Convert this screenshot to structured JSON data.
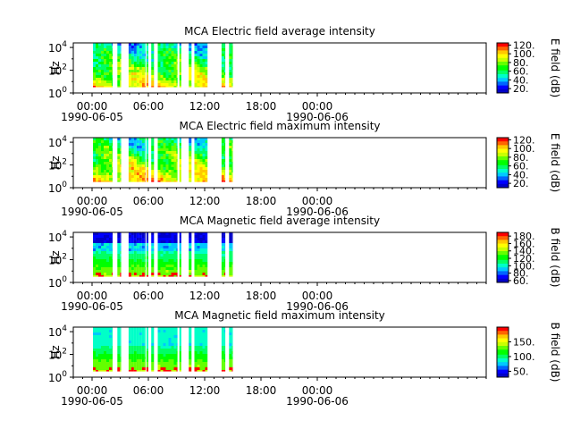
{
  "figure": {
    "background": "#ffffff"
  },
  "colormap": [
    "#0000c8",
    "#0000ff",
    "#0064ff",
    "#00c8ff",
    "#00ffc8",
    "#00ff64",
    "#00ff00",
    "#64ff00",
    "#c8ff00",
    "#ffff00",
    "#ffc800",
    "#ff6400",
    "#ff0000"
  ],
  "chart_data": [
    {
      "type": "heatmap",
      "title": "MCA  Electric field average intensity",
      "ylabel": "Hz",
      "colorbar_label": "E field (dB)",
      "colorbar_ticks": [
        "20.",
        "40.",
        "60.",
        "80.",
        "100.",
        "120."
      ],
      "colorbar_range": [
        10,
        125
      ],
      "ytick_labels": [
        {
          "base": "10",
          "exp": "0"
        },
        {
          "base": "10",
          "exp": "2"
        },
        {
          "base": "10",
          "exp": "4"
        }
      ],
      "ylim_log10": [
        0,
        4.4
      ],
      "xlim_hours": [
        -2,
        42
      ],
      "xtick_labels": [
        {
          "time": "00:00",
          "date": "1990-06-05"
        },
        {
          "time": "06:00",
          "date": ""
        },
        {
          "time": "12:00",
          "date": ""
        },
        {
          "time": "18:00",
          "date": ""
        },
        {
          "time": "00:00",
          "date": "1990-06-06"
        }
      ],
      "data_segments_hours": [
        [
          0.1,
          2.2
        ],
        [
          2.7,
          3.1
        ],
        [
          3.9,
          5.7
        ],
        [
          5.8,
          6.0
        ],
        [
          6.3,
          6.6
        ],
        [
          7.0,
          9.1
        ],
        [
          9.3,
          9.5
        ],
        [
          10.3,
          10.6
        ],
        [
          10.9,
          12.3
        ],
        [
          13.8,
          14.2
        ],
        [
          14.6,
          15.0
        ]
      ],
      "data_freq_range_log10": [
        0.5,
        4.4
      ]
    },
    {
      "type": "heatmap",
      "title": "MCA  Electric field maximum intensity",
      "ylabel": "Hz",
      "colorbar_label": "E field (dB)",
      "colorbar_ticks": [
        "20.",
        "40.",
        "60.",
        "80.",
        "100.",
        "120."
      ],
      "colorbar_range": [
        10,
        125
      ],
      "ytick_labels": [
        {
          "base": "10",
          "exp": "0"
        },
        {
          "base": "10",
          "exp": "2"
        },
        {
          "base": "10",
          "exp": "4"
        }
      ],
      "ylim_log10": [
        0,
        4.4
      ],
      "xlim_hours": [
        -2,
        42
      ],
      "xtick_labels": [
        {
          "time": "00:00",
          "date": "1990-06-05"
        },
        {
          "time": "06:00",
          "date": ""
        },
        {
          "time": "12:00",
          "date": ""
        },
        {
          "time": "18:00",
          "date": ""
        },
        {
          "time": "00:00",
          "date": "1990-06-06"
        }
      ],
      "data_segments_hours": [
        [
          0.1,
          2.2
        ],
        [
          2.7,
          3.1
        ],
        [
          3.9,
          5.7
        ],
        [
          5.8,
          6.0
        ],
        [
          6.3,
          6.6
        ],
        [
          7.0,
          9.1
        ],
        [
          9.3,
          9.5
        ],
        [
          10.3,
          10.6
        ],
        [
          10.9,
          12.3
        ],
        [
          13.8,
          14.2
        ],
        [
          14.6,
          15.0
        ]
      ],
      "data_freq_range_log10": [
        0.5,
        4.4
      ]
    },
    {
      "type": "heatmap",
      "title": "MCA  Magnetic field average intensity",
      "ylabel": "Hz",
      "colorbar_label": "B field (dB)",
      "colorbar_ticks": [
        "60.",
        "80.",
        "100.",
        "120.",
        "140.",
        "160.",
        "180."
      ],
      "colorbar_range": [
        55,
        190
      ],
      "ytick_labels": [
        {
          "base": "10",
          "exp": "0"
        },
        {
          "base": "10",
          "exp": "2"
        },
        {
          "base": "10",
          "exp": "4"
        }
      ],
      "ylim_log10": [
        0,
        4.4
      ],
      "xlim_hours": [
        -2,
        42
      ],
      "xtick_labels": [
        {
          "time": "00:00",
          "date": "1990-06-05"
        },
        {
          "time": "06:00",
          "date": ""
        },
        {
          "time": "12:00",
          "date": ""
        },
        {
          "time": "18:00",
          "date": ""
        },
        {
          "time": "00:00",
          "date": "1990-06-06"
        }
      ],
      "data_segments_hours": [
        [
          0.1,
          2.2
        ],
        [
          2.7,
          3.1
        ],
        [
          3.9,
          5.7
        ],
        [
          5.8,
          6.0
        ],
        [
          6.3,
          6.6
        ],
        [
          7.0,
          9.1
        ],
        [
          9.3,
          9.5
        ],
        [
          10.3,
          10.6
        ],
        [
          10.9,
          12.3
        ],
        [
          13.8,
          14.2
        ],
        [
          14.6,
          15.0
        ]
      ],
      "data_freq_range_log10": [
        0.5,
        4.4
      ]
    },
    {
      "type": "heatmap",
      "title": "MCA  Magnetic field maximum intensity",
      "ylabel": "Hz",
      "colorbar_label": "B field (dB)",
      "colorbar_ticks": [
        "50.",
        "100.",
        "150."
      ],
      "colorbar_range": [
        30,
        200
      ],
      "ytick_labels": [
        {
          "base": "10",
          "exp": "0"
        },
        {
          "base": "10",
          "exp": "2"
        },
        {
          "base": "10",
          "exp": "4"
        }
      ],
      "ylim_log10": [
        0,
        4.4
      ],
      "xlim_hours": [
        -2,
        42
      ],
      "xtick_labels": [
        {
          "time": "00:00",
          "date": "1990-06-05"
        },
        {
          "time": "06:00",
          "date": ""
        },
        {
          "time": "12:00",
          "date": ""
        },
        {
          "time": "18:00",
          "date": ""
        },
        {
          "time": "00:00",
          "date": "1990-06-06"
        }
      ],
      "data_segments_hours": [
        [
          0.1,
          2.2
        ],
        [
          2.7,
          3.1
        ],
        [
          3.9,
          5.7
        ],
        [
          5.8,
          6.0
        ],
        [
          6.3,
          6.6
        ],
        [
          7.0,
          9.1
        ],
        [
          9.3,
          9.5
        ],
        [
          10.3,
          10.6
        ],
        [
          10.9,
          12.3
        ],
        [
          13.8,
          14.2
        ],
        [
          14.6,
          15.0
        ]
      ],
      "data_freq_range_log10": [
        0.5,
        4.4
      ]
    }
  ]
}
